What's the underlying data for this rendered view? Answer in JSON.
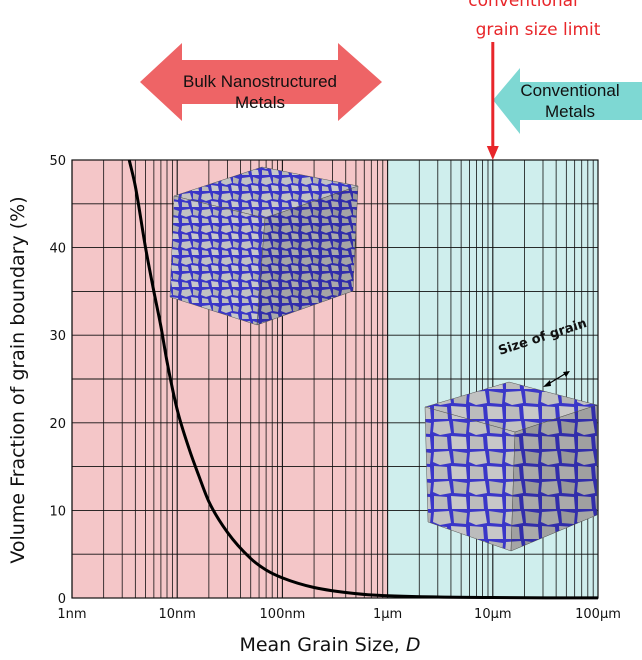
{
  "chart_data": {
    "type": "line",
    "xlabel": "Mean Grain Size, ",
    "xlabel_var": "D",
    "ylabel": "Volume Fraction of grain boundary  (%)",
    "x_scale": "log",
    "x_range_m": [
      1e-09,
      0.0001
    ],
    "ylim": [
      0,
      50
    ],
    "x_ticks": [
      {
        "value_m": 1e-09,
        "label": "1nm"
      },
      {
        "value_m": 1e-08,
        "label": "10nm"
      },
      {
        "value_m": 1e-07,
        "label": "100nm"
      },
      {
        "value_m": 1e-06,
        "label": "1μm"
      },
      {
        "value_m": 1e-05,
        "label": "10μm"
      },
      {
        "value_m": 0.0001,
        "label": "100μm"
      }
    ],
    "y_ticks": [
      {
        "value": 0,
        "label": "0"
      },
      {
        "value": 10,
        "label": "10"
      },
      {
        "value": 20,
        "label": "20"
      },
      {
        "value": 30,
        "label": "30"
      },
      {
        "value": 40,
        "label": "40"
      },
      {
        "value": 50,
        "label": "50"
      }
    ],
    "grid": true,
    "series": [
      {
        "x_m": [
          3.5e-09,
          4e-09,
          5e-09,
          6e-09,
          7e-09,
          8e-09,
          1e-08,
          1.3e-08,
          1.6e-08,
          2e-08,
          3e-08,
          5e-08,
          7e-08,
          1e-07,
          2e-07,
          5e-07,
          1e-06,
          1e-05,
          0.0001
        ],
        "y": [
          50,
          47,
          40,
          35,
          31,
          27,
          21.5,
          17,
          14,
          11,
          7.5,
          4.5,
          3.2,
          2.3,
          1.2,
          0.5,
          0.25,
          0.05,
          0.01
        ]
      }
    ],
    "regions": [
      {
        "from_m": 1e-09,
        "to_m": 1e-06,
        "color": "#f4c6c8"
      },
      {
        "from_m": 1e-06,
        "to_m": 0.0001,
        "color": "#cfeeed"
      }
    ]
  },
  "annotations": {
    "limit_line1": "conventional",
    "limit_line2": "grain size limit",
    "limit_x_m": 1e-05,
    "bulk_line1": "Bulk Nanostructured",
    "bulk_line2": "Metals",
    "conv_line1": "Conventional",
    "conv_line2": "Metals",
    "grain_size_label": "Size of grain"
  },
  "colors": {
    "bulk_arrow": "#ee6466",
    "conv_arrow": "#7ed8d3",
    "limit_arrow": "#e8262a",
    "curve": "#000000",
    "grain_boundary": "#3a36c8",
    "grain": "#b8b8b8"
  }
}
